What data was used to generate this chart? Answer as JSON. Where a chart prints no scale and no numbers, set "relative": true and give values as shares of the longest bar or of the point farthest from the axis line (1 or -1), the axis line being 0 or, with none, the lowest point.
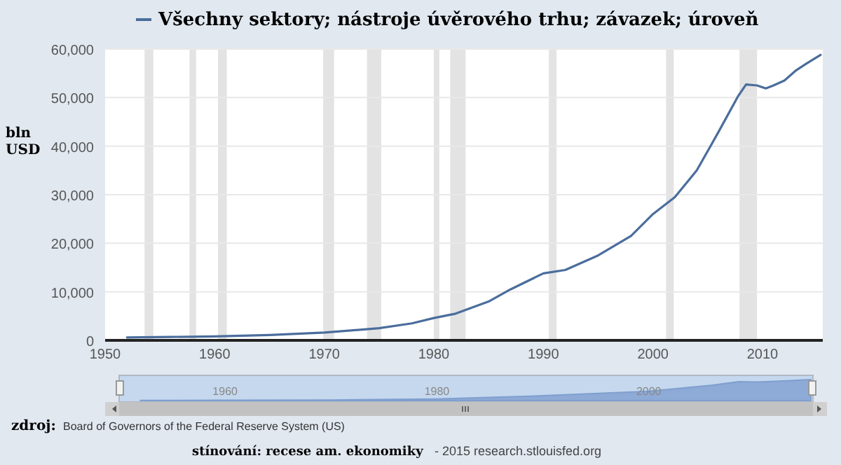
{
  "chart_data": [
    {
      "type": "line",
      "ylabel": "bln USD",
      "legend": "top",
      "grid": "y",
      "xlim": [
        1950,
        2015.5
      ],
      "xticks": [
        1950,
        1960,
        1970,
        1980,
        1990,
        2000,
        2010
      ],
      "ylim": [
        0,
        60000
      ],
      "yticks": [
        {
          "value": 0,
          "label": "0"
        },
        {
          "value": 10000,
          "label": "10,000"
        },
        {
          "value": 20000,
          "label": "20,000"
        },
        {
          "value": 30000,
          "label": "30,000"
        },
        {
          "value": 40000,
          "label": "40,000"
        },
        {
          "value": 50000,
          "label": "50,000"
        },
        {
          "value": 60000,
          "label": "60,000"
        }
      ],
      "series": [
        {
          "name": "Všechny sektory; nástroje úvěrového trhu; závazek; úroveň",
          "color": "#4a6d9c",
          "x": [
            1952,
            1956,
            1960,
            1965,
            1970,
            1975,
            1978,
            1980,
            1982,
            1985,
            1987,
            1990,
            1992,
            1995,
            1998,
            2000,
            2002,
            2004,
            2006,
            2007.8,
            2008.5,
            2009.5,
            2010.3,
            2011,
            2012,
            2013,
            2014,
            2015.3
          ],
          "values": [
            600,
            700,
            800,
            1100,
            1600,
            2500,
            3500,
            4600,
            5500,
            8000,
            10500,
            13800,
            14500,
            17500,
            21500,
            26000,
            29500,
            35000,
            43000,
            50400,
            52700,
            52500,
            51900,
            52500,
            53500,
            55500,
            57000,
            58800
          ]
        }
      ],
      "bands": [
        {
          "axis": "x",
          "from": 1953.6,
          "to": 1954.4,
          "color": "#e3e3e3"
        },
        {
          "axis": "x",
          "from": 1957.7,
          "to": 1958.3,
          "color": "#e3e3e3"
        },
        {
          "axis": "x",
          "from": 1960.3,
          "to": 1961.1,
          "color": "#e3e3e3"
        },
        {
          "axis": "x",
          "from": 1969.9,
          "to": 1970.9,
          "color": "#e3e3e3"
        },
        {
          "axis": "x",
          "from": 1973.9,
          "to": 1975.2,
          "color": "#e3e3e3"
        },
        {
          "axis": "x",
          "from": 1980.0,
          "to": 1980.5,
          "color": "#e3e3e3"
        },
        {
          "axis": "x",
          "from": 1981.5,
          "to": 1982.9,
          "color": "#e3e3e3"
        },
        {
          "axis": "x",
          "from": 1990.5,
          "to": 1991.2,
          "color": "#e3e3e3"
        },
        {
          "axis": "x",
          "from": 2001.2,
          "to": 2001.9,
          "color": "#e3e3e3"
        },
        {
          "axis": "x",
          "from": 2007.9,
          "to": 2009.5,
          "color": "#e3e3e3"
        }
      ],
      "annotations": [
        "zdroj:",
        "Board of Governors of the Federal Reserve System (US)",
        "stínování: recese am. ekonomiky",
        "- 2015 research.stlouisfed.org"
      ]
    },
    {
      "type": "area",
      "relative": true,
      "tick_labels": "x",
      "xlim": [
        1950,
        2015.5
      ],
      "xticks": [
        1960,
        1980,
        2000
      ],
      "series": [
        {
          "color": "#7f9fcf",
          "x": [
            1952,
            1960,
            1970,
            1980,
            1990,
            2000,
            2006,
            2008.5,
            2010.3,
            2013,
            2015.3
          ],
          "values": [
            0.01,
            0.014,
            0.027,
            0.078,
            0.23,
            0.44,
            0.73,
            0.9,
            0.88,
            0.94,
            1
          ]
        }
      ]
    }
  ]
}
